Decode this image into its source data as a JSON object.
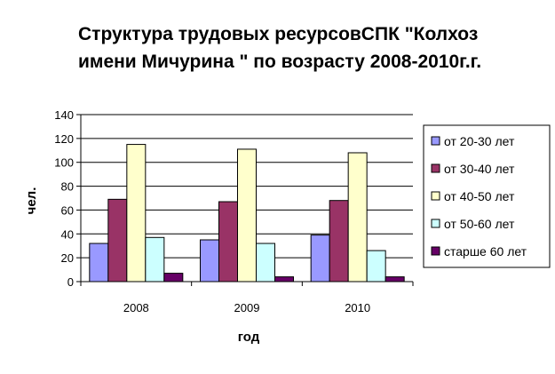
{
  "chart_data": {
    "type": "bar",
    "title": [
      "Структура трудовых ресурсовСПК \"Колхоз",
      "имени Мичурина \" по возрасту 2008-2010г.г."
    ],
    "xlabel": "год",
    "ylabel": "чел.",
    "categories": [
      "2008",
      "2009",
      "2010"
    ],
    "ylim": [
      0,
      140
    ],
    "yticks": [
      0,
      20,
      40,
      60,
      80,
      100,
      120,
      140
    ],
    "grid": true,
    "legend_position": "right",
    "series": [
      {
        "name": "от 20-30 лет",
        "values": [
          32,
          35,
          39
        ],
        "color": "#9999ff"
      },
      {
        "name": "от 30-40 лет",
        "values": [
          69,
          67,
          68
        ],
        "color": "#993366"
      },
      {
        "name": "от 40-50 лет",
        "values": [
          115,
          111,
          108
        ],
        "color": "#ffffcc"
      },
      {
        "name": "от 50-60 лет",
        "values": [
          37,
          32,
          26
        ],
        "color": "#ccffff"
      },
      {
        "name": "старше 60 лет",
        "values": [
          7,
          4,
          4
        ],
        "color": "#660066"
      }
    ]
  }
}
